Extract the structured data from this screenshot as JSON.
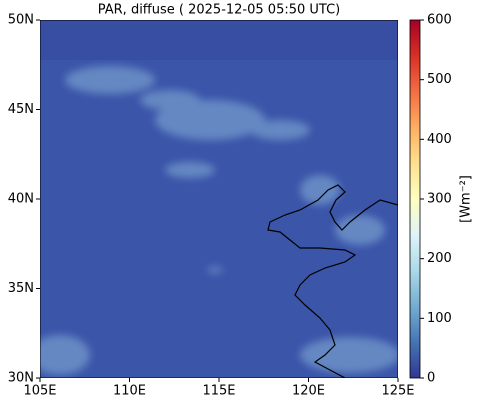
{
  "title": "PAR, diffuse ( 2025-12-05 05:50 UTC)",
  "map": {
    "lon_lim": [
      105,
      125
    ],
    "lat_lim": [
      30,
      50
    ],
    "lon_ticks": [
      {
        "value": 105,
        "label": "105E"
      },
      {
        "value": 110,
        "label": "110E"
      },
      {
        "value": 115,
        "label": "115E"
      },
      {
        "value": 120,
        "label": "120E"
      },
      {
        "value": 125,
        "label": "125E"
      }
    ],
    "lat_ticks": [
      {
        "value": 30,
        "label": "30N"
      },
      {
        "value": 35,
        "label": "35N"
      },
      {
        "value": 40,
        "label": "40N"
      },
      {
        "value": 45,
        "label": "45N"
      },
      {
        "value": 50,
        "label": "50N"
      }
    ]
  },
  "colorbar": {
    "label": "[Wm⁻²]",
    "lim": [
      0,
      600
    ],
    "ticks": [
      0,
      100,
      200,
      300,
      400,
      500,
      600
    ]
  }
}
